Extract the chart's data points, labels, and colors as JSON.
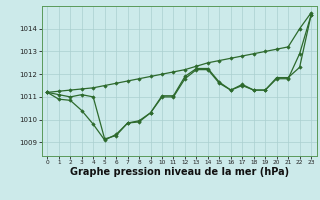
{
  "background_color": "#cceaea",
  "grid_color": "#aacfcf",
  "line_color": "#2d6a2d",
  "marker_color": "#2d6a2d",
  "xlabel": "Graphe pression niveau de la mer (hPa)",
  "xlabel_fontsize": 7.0,
  "xlim": [
    -0.5,
    23.5
  ],
  "ylim": [
    1008.4,
    1015.0
  ],
  "yticks": [
    1009,
    1010,
    1011,
    1012,
    1013,
    1014
  ],
  "xticks": [
    0,
    1,
    2,
    3,
    4,
    5,
    6,
    7,
    8,
    9,
    10,
    11,
    12,
    13,
    14,
    15,
    16,
    17,
    18,
    19,
    20,
    21,
    22,
    23
  ],
  "series": [
    [
      1011.2,
      1011.25,
      1011.3,
      1011.35,
      1011.4,
      1011.5,
      1011.6,
      1011.7,
      1011.8,
      1011.9,
      1012.0,
      1012.1,
      1012.2,
      1012.35,
      1012.5,
      1012.6,
      1012.7,
      1012.8,
      1012.9,
      1013.0,
      1013.1,
      1013.2,
      1014.0,
      1014.7
    ],
    [
      1011.2,
      1010.9,
      1010.85,
      1010.4,
      1009.8,
      1009.1,
      1009.35,
      1009.85,
      1009.95,
      1010.3,
      1011.05,
      1011.05,
      1011.9,
      1012.25,
      1012.25,
      1011.65,
      1011.3,
      1011.55,
      1011.3,
      1011.3,
      1011.85,
      1011.85,
      1012.3,
      1014.6
    ],
    [
      1011.2,
      1011.1,
      1011.0,
      1011.1,
      1011.0,
      1009.15,
      1009.3,
      1009.85,
      1009.9,
      1010.3,
      1011.0,
      1011.0,
      1011.8,
      1012.2,
      1012.2,
      1011.6,
      1011.3,
      1011.5,
      1011.3,
      1011.3,
      1011.8,
      1011.8,
      1012.9,
      1014.6
    ]
  ]
}
